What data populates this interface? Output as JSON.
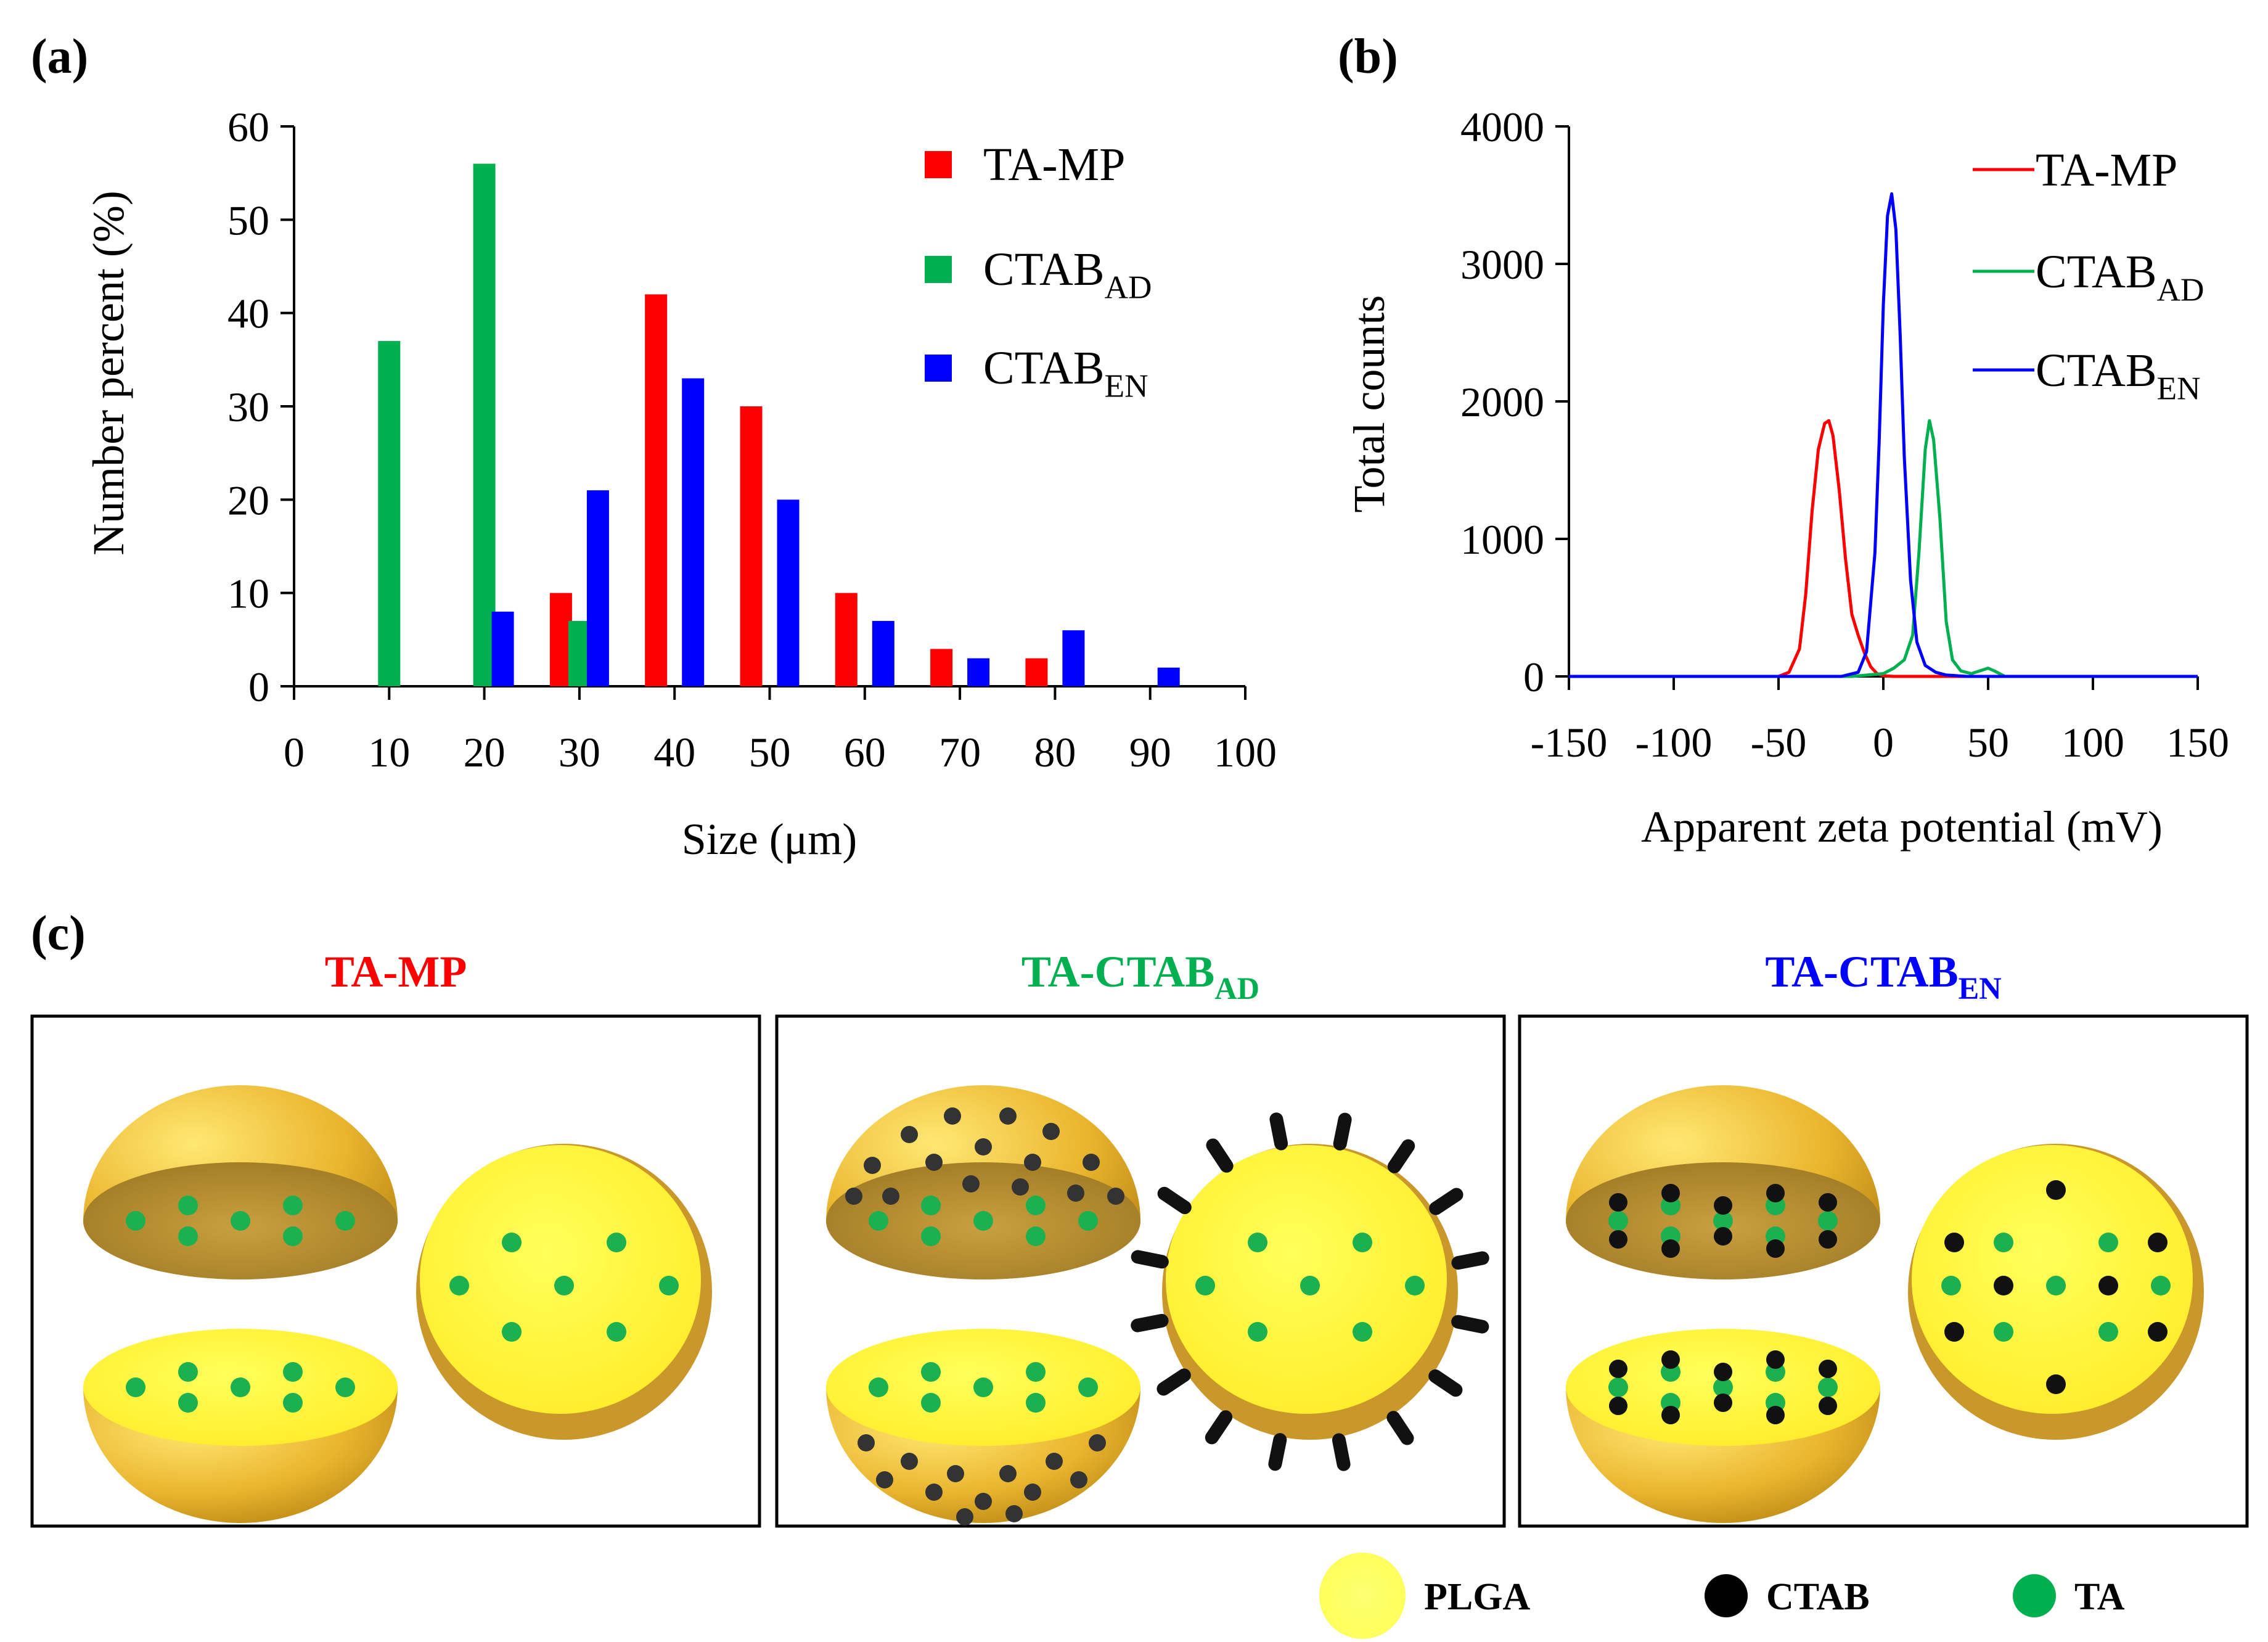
{
  "panels": {
    "a": {
      "label": "(a)"
    },
    "b": {
      "label": "(b)"
    },
    "c": {
      "label": "(c)"
    }
  },
  "chart_data": [
    {
      "id": "a",
      "type": "bar",
      "xlabel": "Size (μm)",
      "ylabel": "Number  percent  (%)",
      "xlim": [
        0,
        100
      ],
      "ylim": [
        0,
        60
      ],
      "xticks": [
        "0",
        "10",
        "20",
        "30",
        "40",
        "50",
        "60",
        "70",
        "80",
        "90",
        "100"
      ],
      "yticks": [
        "0",
        "10",
        "20",
        "30",
        "40",
        "50",
        "60"
      ],
      "legend_position": "top-right",
      "series": [
        {
          "name": "TA-MP",
          "name_sub": "",
          "color": "#ff0000",
          "x": [
            30,
            40,
            50,
            60,
            70,
            80
          ],
          "values": [
            10,
            42,
            30,
            10,
            4,
            3
          ]
        },
        {
          "name": "CTAB",
          "name_sub": "AD",
          "color": "#00b050",
          "x": [
            10,
            20,
            30
          ],
          "values": [
            37,
            56,
            7
          ]
        },
        {
          "name": "CTAB",
          "name_sub": "EN",
          "color": "#0000ff",
          "x": [
            20,
            30,
            40,
            50,
            60,
            70,
            80,
            90
          ],
          "values": [
            8,
            21,
            33,
            20,
            7,
            3,
            6,
            2
          ]
        }
      ]
    },
    {
      "id": "b",
      "type": "line",
      "xlabel": "Apparent zeta potential (mV)",
      "ylabel": "Total counts",
      "xlim": [
        -150,
        150
      ],
      "ylim": [
        0,
        4000
      ],
      "xticks": [
        "-150",
        "-100",
        "-50",
        "0",
        "50",
        "100",
        "150"
      ],
      "yticks": [
        "0",
        "1000",
        "2000",
        "3000",
        "4000"
      ],
      "legend_position": "top-right",
      "series": [
        {
          "name": "TA-MP",
          "name_sub": "",
          "color": "#ff0000",
          "x": [
            -150,
            -50,
            -45,
            -40,
            -37,
            -34,
            -31,
            -28,
            -26,
            -24,
            -21,
            -18,
            -15,
            -12,
            -9,
            -6,
            -3,
            0,
            5,
            10,
            150
          ],
          "y": [
            0,
            0,
            30,
            200,
            600,
            1200,
            1650,
            1840,
            1860,
            1750,
            1350,
            850,
            450,
            300,
            170,
            70,
            20,
            5,
            0,
            0,
            0
          ]
        },
        {
          "name": "CTAB",
          "name_sub": "AD",
          "color": "#00b050",
          "x": [
            -150,
            -15,
            0,
            5,
            10,
            14,
            17,
            20,
            22,
            24,
            27,
            30,
            33,
            37,
            42,
            47,
            50,
            53,
            58,
            150
          ],
          "y": [
            0,
            0,
            20,
            60,
            120,
            300,
            900,
            1650,
            1860,
            1720,
            1150,
            400,
            120,
            40,
            20,
            45,
            60,
            40,
            0,
            0
          ]
        },
        {
          "name": "CTAB",
          "name_sub": "EN",
          "color": "#0000ff",
          "x": [
            -150,
            -20,
            -12,
            -8,
            -4,
            -2,
            0,
            2,
            4,
            6,
            8,
            10,
            13,
            16,
            20,
            25,
            30,
            40,
            150
          ],
          "y": [
            0,
            0,
            30,
            180,
            900,
            1700,
            2700,
            3350,
            3510,
            3250,
            2500,
            1600,
            700,
            250,
            80,
            30,
            10,
            0,
            0
          ]
        }
      ]
    }
  ],
  "diagram": {
    "titles": [
      {
        "main": "TA-MP",
        "sub": "",
        "color": "#ff0000"
      },
      {
        "main": "TA-CTAB",
        "sub": "AD",
        "color": "#00b050"
      },
      {
        "main": "TA-CTAB",
        "sub": "EN",
        "color": "#0000ff"
      }
    ],
    "legend": [
      {
        "label": "PLGA",
        "color": "#ffff66"
      },
      {
        "label": "CTAB",
        "color": "#000000"
      },
      {
        "label": "TA",
        "color": "#00b050"
      }
    ],
    "colors": {
      "shell": "#e8b52c",
      "face": "#ffef3a",
      "inner": "#b08a2a",
      "ta": "#1cb050",
      "ctab": "#111111"
    }
  }
}
